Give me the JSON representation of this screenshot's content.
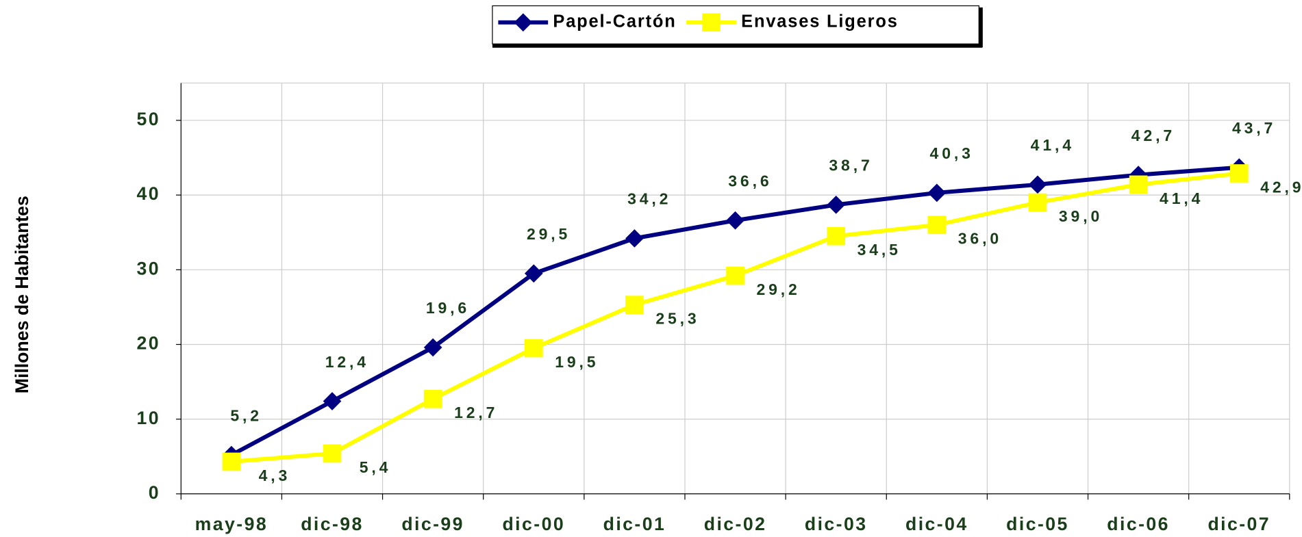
{
  "chart_data": {
    "type": "line",
    "y_label": "Millones de Habitantes",
    "categories": [
      "may-98",
      "dic-98",
      "dic-99",
      "dic-00",
      "dic-01",
      "dic-02",
      "dic-03",
      "dic-04",
      "dic-05",
      "dic-06",
      "dic-07"
    ],
    "series": [
      {
        "name": "Papel-Cartón",
        "color": "#000080",
        "marker": "diamond",
        "values": [
          5.2,
          12.4,
          19.6,
          29.5,
          34.2,
          36.6,
          38.7,
          40.3,
          41.4,
          42.7,
          43.7
        ],
        "value_labels": [
          "5,2",
          "12,4",
          "19,6",
          "29,5",
          "34,2",
          "36,6",
          "38,7",
          "40,3",
          "41,4",
          "42,7",
          "43,7"
        ]
      },
      {
        "name": "Envases Ligeros",
        "color": "#ffff00",
        "marker": "square",
        "values": [
          4.3,
          5.4,
          12.7,
          19.5,
          25.3,
          29.2,
          34.5,
          36.0,
          39.0,
          41.4,
          42.9
        ],
        "value_labels": [
          "4,3",
          "5,4",
          "12,7",
          "19,5",
          "25,3",
          "29,2",
          "34,5",
          "36,0",
          "39,0",
          "41,4",
          "42,9"
        ]
      }
    ],
    "ylim": [
      0,
      55
    ],
    "yticks": [
      0,
      10,
      20,
      30,
      40,
      50
    ],
    "grid": true,
    "legend": "top"
  }
}
